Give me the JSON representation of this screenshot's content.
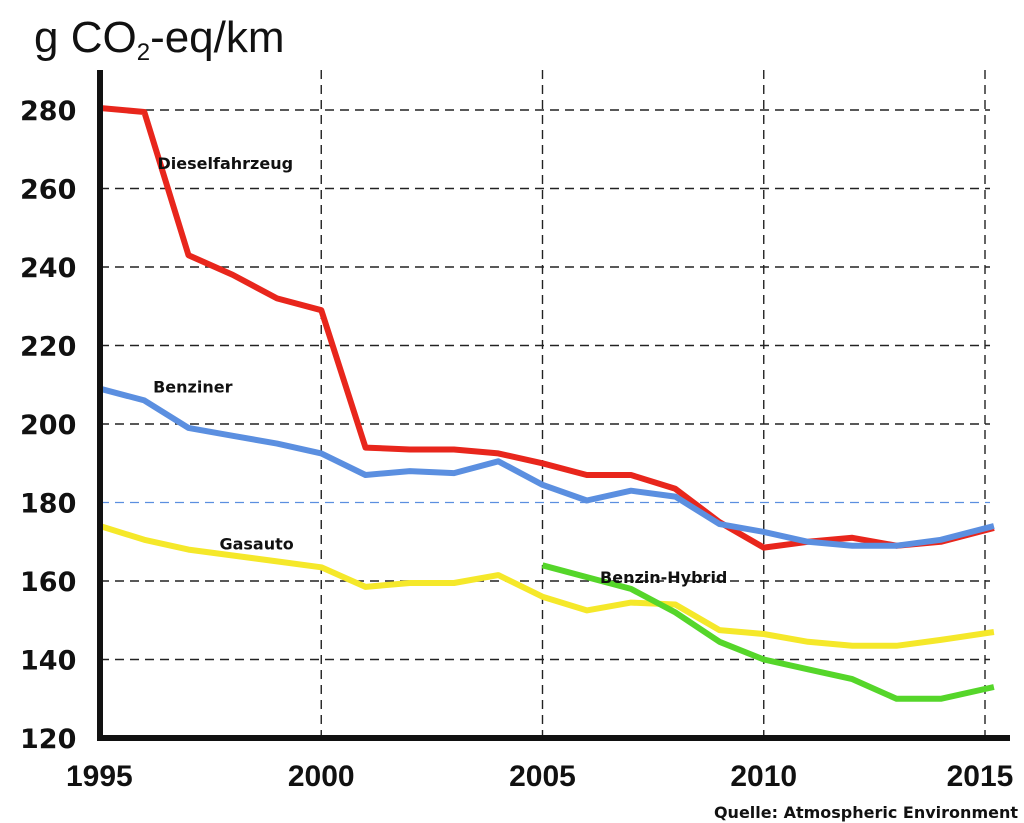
{
  "chart_data": {
    "type": "line",
    "ylabel": {
      "prefix": "g CO",
      "subscript": "2",
      "suffix": "-eq/km"
    },
    "ylim": [
      120,
      285
    ],
    "xlim": [
      1995,
      2015.3
    ],
    "yticks": [
      120,
      140,
      160,
      180,
      200,
      220,
      240,
      260,
      280
    ],
    "xticks": [
      1995,
      2000,
      2005,
      2010,
      2015
    ],
    "grid": true,
    "source": "Quelle: Atmospheric Environment",
    "series": [
      {
        "name": "Dieselfahrzeug",
        "color": "#e8261c",
        "points": [
          [
            1995,
            280.5
          ],
          [
            1996,
            279.5
          ],
          [
            1997,
            243
          ],
          [
            1998,
            238
          ],
          [
            1999,
            232
          ],
          [
            2000,
            229
          ],
          [
            2001,
            194
          ],
          [
            2002,
            193.5
          ],
          [
            2003,
            193.5
          ],
          [
            2004,
            192.5
          ],
          [
            2005,
            190
          ],
          [
            2006,
            187
          ],
          [
            2007,
            187
          ],
          [
            2008,
            183.5
          ],
          [
            2009,
            175
          ],
          [
            2010,
            168.5
          ],
          [
            2011,
            170
          ],
          [
            2012,
            171
          ],
          [
            2013,
            169
          ],
          [
            2014,
            170
          ],
          [
            2015.2,
            173.5
          ]
        ]
      },
      {
        "name": "Benziner",
        "color": "#5b8fe0",
        "points": [
          [
            1995,
            209
          ],
          [
            1996,
            206
          ],
          [
            1997,
            199
          ],
          [
            1998,
            197
          ],
          [
            1999,
            195
          ],
          [
            2000,
            192.5
          ],
          [
            2001,
            187
          ],
          [
            2002,
            188
          ],
          [
            2003,
            187.5
          ],
          [
            2004,
            190.5
          ],
          [
            2005,
            184.5
          ],
          [
            2006,
            180.5
          ],
          [
            2007,
            183
          ],
          [
            2008,
            181.5
          ],
          [
            2009,
            174.5
          ],
          [
            2010,
            172.5
          ],
          [
            2011,
            170
          ],
          [
            2012,
            169
          ],
          [
            2013,
            169
          ],
          [
            2014,
            170.5
          ],
          [
            2015.2,
            174
          ]
        ]
      },
      {
        "name": "Gasauto",
        "color": "#f5e82a",
        "points": [
          [
            1995,
            174
          ],
          [
            1996,
            170.5
          ],
          [
            1997,
            168
          ],
          [
            1998,
            166.5
          ],
          [
            1999,
            165
          ],
          [
            2000,
            163.5
          ],
          [
            2001,
            158.5
          ],
          [
            2002,
            159.5
          ],
          [
            2003,
            159.5
          ],
          [
            2004,
            161.5
          ],
          [
            2005,
            156
          ],
          [
            2006,
            152.5
          ],
          [
            2007,
            154.5
          ],
          [
            2008,
            154
          ],
          [
            2009,
            147.5
          ],
          [
            2010,
            146.5
          ],
          [
            2011,
            144.5
          ],
          [
            2012,
            143.5
          ],
          [
            2013,
            143.5
          ],
          [
            2014,
            145
          ],
          [
            2015.2,
            147
          ]
        ]
      },
      {
        "name": "Benzin-Hybrid",
        "color": "#55d62a",
        "points": [
          [
            2005,
            164
          ],
          [
            2006,
            161
          ],
          [
            2007,
            158
          ],
          [
            2008,
            152
          ],
          [
            2009,
            144.5
          ],
          [
            2010,
            140
          ],
          [
            2011,
            137.5
          ],
          [
            2012,
            135
          ],
          [
            2013,
            130
          ],
          [
            2014,
            130
          ],
          [
            2015.2,
            133
          ]
        ]
      }
    ],
    "labels": [
      {
        "series": "Dieselfahrzeug",
        "text": "Dieselfahrzeug",
        "at": [
          1996.3,
          265
        ]
      },
      {
        "series": "Benziner",
        "text": "Benziner",
        "at": [
          1996.2,
          208
        ]
      },
      {
        "series": "Gasauto",
        "text": "Gasauto",
        "at": [
          1997.7,
          168
        ]
      },
      {
        "series": "Benzin-Hybrid",
        "text": "Benzin-Hybrid",
        "at": [
          2006.3,
          159.5
        ]
      }
    ],
    "highlight_gridline": {
      "value": 180,
      "color": "#5b8fe0"
    }
  }
}
